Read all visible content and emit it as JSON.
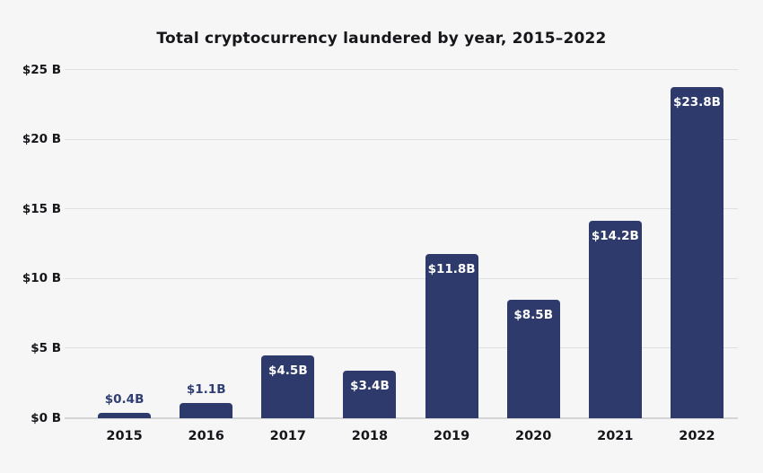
{
  "title": "Total cryptocurrency laundered by year, 2015–2022",
  "colors": {
    "background": "#f6f6f7",
    "bar": "#2d3a6b",
    "grid": "#e0e0e2",
    "baseline": "#d4d4d6",
    "text": "#16161a",
    "label_above": "#2f3e74",
    "label_inside": "#ffffff"
  },
  "chart_data": {
    "type": "bar",
    "title": "Total cryptocurrency laundered by year, 2015–2022",
    "categories": [
      "2015",
      "2016",
      "2017",
      "2018",
      "2019",
      "2020",
      "2021",
      "2022"
    ],
    "values": [
      0.4,
      1.1,
      4.5,
      3.4,
      11.8,
      8.5,
      14.2,
      23.8
    ],
    "bar_labels": [
      "$0.4B",
      "$1.1B",
      "$4.5B",
      "$3.4B",
      "$11.8B",
      "$8.5B",
      "$14.2B",
      "$23.8B"
    ],
    "label_placement": [
      "above",
      "above",
      "inside",
      "inside",
      "inside",
      "inside",
      "inside",
      "inside"
    ],
    "xlabel": "",
    "ylabel": "",
    "ylim": [
      0,
      25
    ],
    "ytick_labels": [
      "$0 B",
      "$5 B",
      "$10 B",
      "$15 B",
      "$20 B",
      "$25 B"
    ],
    "grid": true,
    "legend_position": "none"
  }
}
